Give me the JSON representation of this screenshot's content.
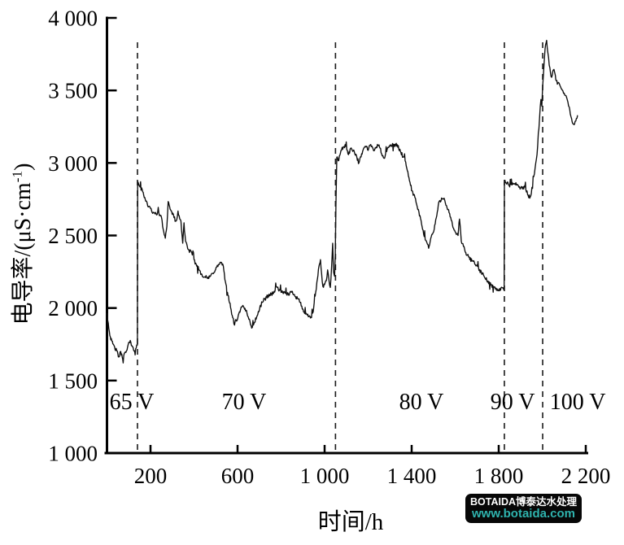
{
  "watermark": {
    "line1": "BOTAIDA博泰达水处理",
    "line2": "www.botaida.com",
    "bg_color": "#070707",
    "line2_color": "#2fb3ae"
  },
  "chart_data": {
    "type": "line",
    "title": "",
    "xlabel": "时间/h",
    "ylabel": "电导率/(μS·cm⁻¹)",
    "ylabel_pre": "电导率/(μS·cm",
    "ylabel_sup": "-1",
    "ylabel_post": ")",
    "xlim": [
      0,
      2200
    ],
    "ylim": [
      1000,
      4000
    ],
    "grid": false,
    "legend": "none",
    "line_color": "#0d0d0d",
    "axis_color": "#000000",
    "x_ticks": [
      {
        "value": 200,
        "label": "200"
      },
      {
        "value": 600,
        "label": "600"
      },
      {
        "value": 1000,
        "label": "1 000"
      },
      {
        "value": 1400,
        "label": "1 400"
      },
      {
        "value": 1800,
        "label": "1 800"
      },
      {
        "value": 2200,
        "label": "2 200"
      }
    ],
    "y_ticks": [
      {
        "value": 1000,
        "label": "1 000"
      },
      {
        "value": 1500,
        "label": "1 500"
      },
      {
        "value": 2000,
        "label": "2 000"
      },
      {
        "value": 2500,
        "label": "2 500"
      },
      {
        "value": 3000,
        "label": "3 000"
      },
      {
        "value": 3500,
        "label": "3 500"
      },
      {
        "value": 4000,
        "label": "4 000"
      }
    ],
    "stage_boundaries_h": [
      140,
      1050,
      1826,
      2002
    ],
    "voltage_regions": [
      {
        "label": "65 V",
        "t_center": 114
      },
      {
        "label": "70 V",
        "t_center": 630
      },
      {
        "label": "80 V",
        "t_center": 1445
      },
      {
        "label": "90 V",
        "t_center": 1864
      },
      {
        "label": "100 V",
        "t_center": 2163
      }
    ],
    "voltage_label_y_value": 1360,
    "series": [
      {
        "name": "电导率",
        "noise_amplitude": 14,
        "anchors": [
          [
            0,
            1965
          ],
          [
            6,
            1895
          ],
          [
            13,
            1815
          ],
          [
            22,
            1768
          ],
          [
            32,
            1738
          ],
          [
            45,
            1702
          ],
          [
            55,
            1662
          ],
          [
            63,
            1697
          ],
          [
            72,
            1652
          ],
          [
            82,
            1688
          ],
          [
            92,
            1707
          ],
          [
            100,
            1758
          ],
          [
            107,
            1780
          ],
          [
            115,
            1737
          ],
          [
            124,
            1707
          ],
          [
            132,
            1722
          ],
          [
            139,
            1742
          ],
          [
            140,
            1748
          ],
          [
            141,
            2868
          ],
          [
            152,
            2838
          ],
          [
            164,
            2802
          ],
          [
            176,
            2752
          ],
          [
            190,
            2700
          ],
          [
            205,
            2672
          ],
          [
            218,
            2650
          ],
          [
            233,
            2657
          ],
          [
            248,
            2638
          ],
          [
            261,
            2525
          ],
          [
            268,
            2487
          ],
          [
            275,
            2562
          ],
          [
            281,
            2733
          ],
          [
            288,
            2698
          ],
          [
            297,
            2663
          ],
          [
            308,
            2622
          ],
          [
            318,
            2600
          ],
          [
            329,
            2638
          ],
          [
            340,
            2598
          ],
          [
            348,
            2448
          ],
          [
            354,
            2582
          ],
          [
            361,
            2462
          ],
          [
            374,
            2402
          ],
          [
            387,
            2386
          ],
          [
            400,
            2332
          ],
          [
            412,
            2292
          ],
          [
            424,
            2262
          ],
          [
            436,
            2232
          ],
          [
            448,
            2216
          ],
          [
            460,
            2206
          ],
          [
            473,
            2212
          ],
          [
            486,
            2242
          ],
          [
            499,
            2266
          ],
          [
            512,
            2298
          ],
          [
            522,
            2312
          ],
          [
            532,
            2300
          ],
          [
            544,
            2182
          ],
          [
            556,
            2092
          ],
          [
            568,
            2002
          ],
          [
            578,
            1932
          ],
          [
            586,
            1886
          ],
          [
            593,
            1916
          ],
          [
            601,
            1928
          ],
          [
            611,
            1976
          ],
          [
            622,
            2012
          ],
          [
            632,
            1992
          ],
          [
            641,
            1982
          ],
          [
            652,
            1926
          ],
          [
            662,
            1882
          ],
          [
            668,
            1864
          ],
          [
            678,
            1906
          ],
          [
            690,
            1946
          ],
          [
            701,
            1992
          ],
          [
            713,
            2042
          ],
          [
            726,
            2062
          ],
          [
            740,
            2086
          ],
          [
            755,
            2096
          ],
          [
            768,
            2112
          ],
          [
            780,
            2146
          ],
          [
            795,
            2122
          ],
          [
            810,
            2102
          ],
          [
            825,
            2096
          ],
          [
            840,
            2102
          ],
          [
            852,
            2112
          ],
          [
            866,
            2082
          ],
          [
            880,
            2062
          ],
          [
            895,
            2012
          ],
          [
            906,
            1972
          ],
          [
            918,
            1952
          ],
          [
            930,
            1942
          ],
          [
            940,
            1936
          ],
          [
            950,
            2002
          ],
          [
            959,
            2106
          ],
          [
            967,
            2202
          ],
          [
            974,
            2282
          ],
          [
            981,
            2332
          ],
          [
            986,
            2242
          ],
          [
            992,
            2146
          ],
          [
            1000,
            2162
          ],
          [
            1008,
            2192
          ],
          [
            1014,
            2262
          ],
          [
            1019,
            2202
          ],
          [
            1026,
            2136
          ],
          [
            1032,
            2282
          ],
          [
            1037,
            2442
          ],
          [
            1041,
            2252
          ],
          [
            1046,
            2222
          ],
          [
            1049,
            2352
          ],
          [
            1052,
            2702
          ],
          [
            1056,
            3042
          ],
          [
            1065,
            3022
          ],
          [
            1075,
            3082
          ],
          [
            1086,
            3112
          ],
          [
            1097,
            3116
          ],
          [
            1110,
            3062
          ],
          [
            1122,
            3102
          ],
          [
            1134,
            3086
          ],
          [
            1146,
            3052
          ],
          [
            1158,
            2996
          ],
          [
            1170,
            3062
          ],
          [
            1185,
            3116
          ],
          [
            1200,
            3092
          ],
          [
            1212,
            3126
          ],
          [
            1225,
            3082
          ],
          [
            1238,
            3112
          ],
          [
            1250,
            3126
          ],
          [
            1262,
            3062
          ],
          [
            1273,
            3032
          ],
          [
            1285,
            3082
          ],
          [
            1297,
            3116
          ],
          [
            1310,
            3122
          ],
          [
            1322,
            3126
          ],
          [
            1334,
            3122
          ],
          [
            1348,
            3082
          ],
          [
            1360,
            3042
          ],
          [
            1370,
            3016
          ],
          [
            1380,
            2942
          ],
          [
            1390,
            2882
          ],
          [
            1402,
            2806
          ],
          [
            1415,
            2762
          ],
          [
            1428,
            2682
          ],
          [
            1441,
            2612
          ],
          [
            1455,
            2512
          ],
          [
            1467,
            2462
          ],
          [
            1478,
            2416
          ],
          [
            1490,
            2492
          ],
          [
            1501,
            2526
          ],
          [
            1513,
            2622
          ],
          [
            1527,
            2736
          ],
          [
            1540,
            2756
          ],
          [
            1549,
            2762
          ],
          [
            1560,
            2702
          ],
          [
            1572,
            2656
          ],
          [
            1582,
            2602
          ],
          [
            1590,
            2556
          ],
          [
            1602,
            2522
          ],
          [
            1613,
            2502
          ],
          [
            1620,
            2616
          ],
          [
            1628,
            2462
          ],
          [
            1638,
            2422
          ],
          [
            1646,
            2388
          ],
          [
            1656,
            2362
          ],
          [
            1665,
            2346
          ],
          [
            1677,
            2326
          ],
          [
            1688,
            2318
          ],
          [
            1700,
            2292
          ],
          [
            1712,
            2262
          ],
          [
            1725,
            2236
          ],
          [
            1738,
            2206
          ],
          [
            1751,
            2182
          ],
          [
            1764,
            2162
          ],
          [
            1777,
            2146
          ],
          [
            1790,
            2126
          ],
          [
            1804,
            2130
          ],
          [
            1818,
            2136
          ],
          [
            1825,
            2132
          ],
          [
            1826,
            2868
          ],
          [
            1834,
            2866
          ],
          [
            1845,
            2850
          ],
          [
            1856,
            2846
          ],
          [
            1868,
            2860
          ],
          [
            1879,
            2862
          ],
          [
            1890,
            2842
          ],
          [
            1901,
            2826
          ],
          [
            1912,
            2832
          ],
          [
            1920,
            2836
          ],
          [
            1930,
            2802
          ],
          [
            1938,
            2764
          ],
          [
            1945,
            2772
          ],
          [
            1950,
            2792
          ],
          [
            1958,
            2902
          ],
          [
            1964,
            2922
          ],
          [
            1970,
            3002
          ],
          [
            1976,
            3062
          ],
          [
            1982,
            3202
          ],
          [
            1987,
            3286
          ],
          [
            1991,
            3392
          ],
          [
            1994,
            3436
          ],
          [
            1998,
            3396
          ],
          [
            2002,
            3522
          ],
          [
            2005,
            3592
          ],
          [
            2009,
            3702
          ],
          [
            2013,
            3792
          ],
          [
            2020,
            3840
          ],
          [
            2026,
            3762
          ],
          [
            2032,
            3676
          ],
          [
            2038,
            3622
          ],
          [
            2043,
            3592
          ],
          [
            2049,
            3632
          ],
          [
            2054,
            3648
          ],
          [
            2060,
            3602
          ],
          [
            2065,
            3566
          ],
          [
            2072,
            3546
          ],
          [
            2080,
            3536
          ],
          [
            2088,
            3512
          ],
          [
            2095,
            3496
          ],
          [
            2101,
            3482
          ],
          [
            2106,
            3468
          ],
          [
            2112,
            3446
          ],
          [
            2118,
            3422
          ],
          [
            2124,
            3382
          ],
          [
            2129,
            3342
          ],
          [
            2135,
            3302
          ],
          [
            2140,
            3272
          ],
          [
            2146,
            3262
          ],
          [
            2151,
            3282
          ],
          [
            2157,
            3312
          ],
          [
            2162,
            3326
          ]
        ]
      }
    ]
  }
}
